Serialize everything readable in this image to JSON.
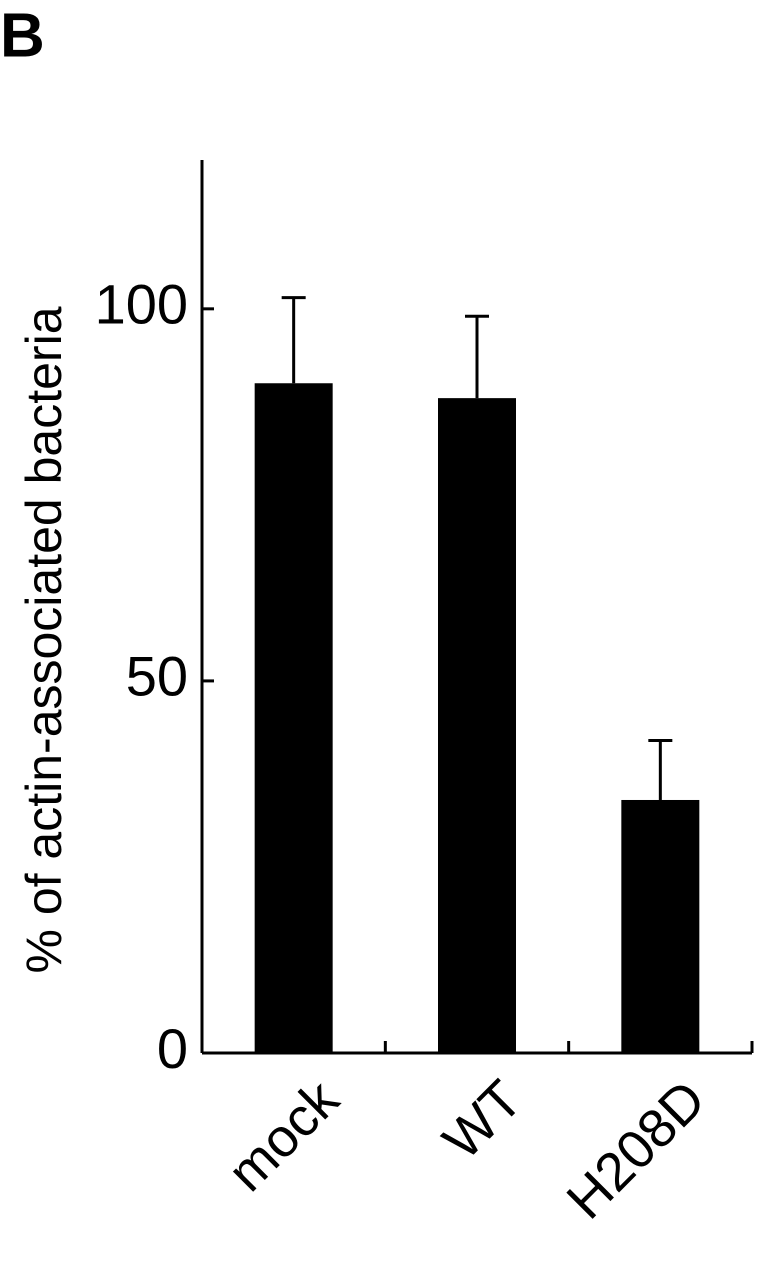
{
  "chart_data": {
    "type": "bar",
    "panel_label": "B",
    "y_label": "% of actin-associated bacteria",
    "categories": [
      "mock",
      "WT",
      "H208D"
    ],
    "values": [
      90,
      88,
      34
    ],
    "errors": [
      11.5,
      11,
      8
    ],
    "color": "#000000",
    "ylim": [
      0,
      120
    ],
    "yticks": [
      0,
      50,
      100
    ],
    "grid": false
  }
}
